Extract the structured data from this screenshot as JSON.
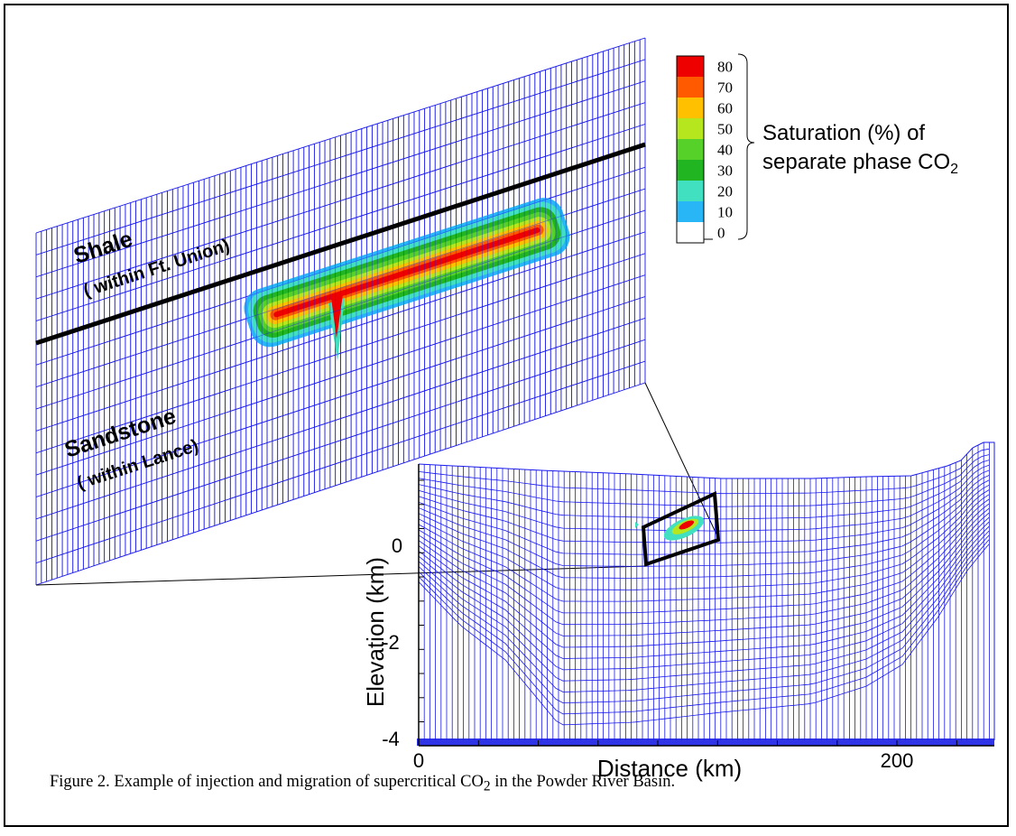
{
  "chart_data": [
    {
      "type": "contour",
      "panel": "zoomed grid",
      "labels": {
        "shale": "Shale",
        "shale_sub": "( within Ft. Union)",
        "sandstone": "Sandstone",
        "sandstone_sub": "( within Lance)"
      },
      "legend": {
        "title_line1": "Saturation (%) of",
        "title_line2": "separate phase CO",
        "title_sub": "2",
        "levels": [
          "0",
          "10",
          "20",
          "30",
          "40",
          "50",
          "60",
          "70",
          "80"
        ],
        "colors": [
          "#ffffff",
          "#29b6f6",
          "#40e0c0",
          "#22b522",
          "#55d12a",
          "#b6e61d",
          "#ffc000",
          "#ff5a00",
          "#ee0000"
        ]
      }
    },
    {
      "type": "contour",
      "panel": "basin cross-section",
      "xlabel": "Distance (km)",
      "ylabel": "Elevation (km)",
      "x_ticks": [
        "0",
        "200"
      ],
      "y_ticks": [
        "0",
        "-2",
        "-4"
      ]
    }
  ],
  "caption": {
    "prefix": "Figure 2. Example of injection and migration of supercritical CO",
    "sub": "2",
    "suffix": " in the Powder River Basin."
  },
  "colors": {
    "grid": "#1a1aee",
    "frame": "#000000"
  }
}
